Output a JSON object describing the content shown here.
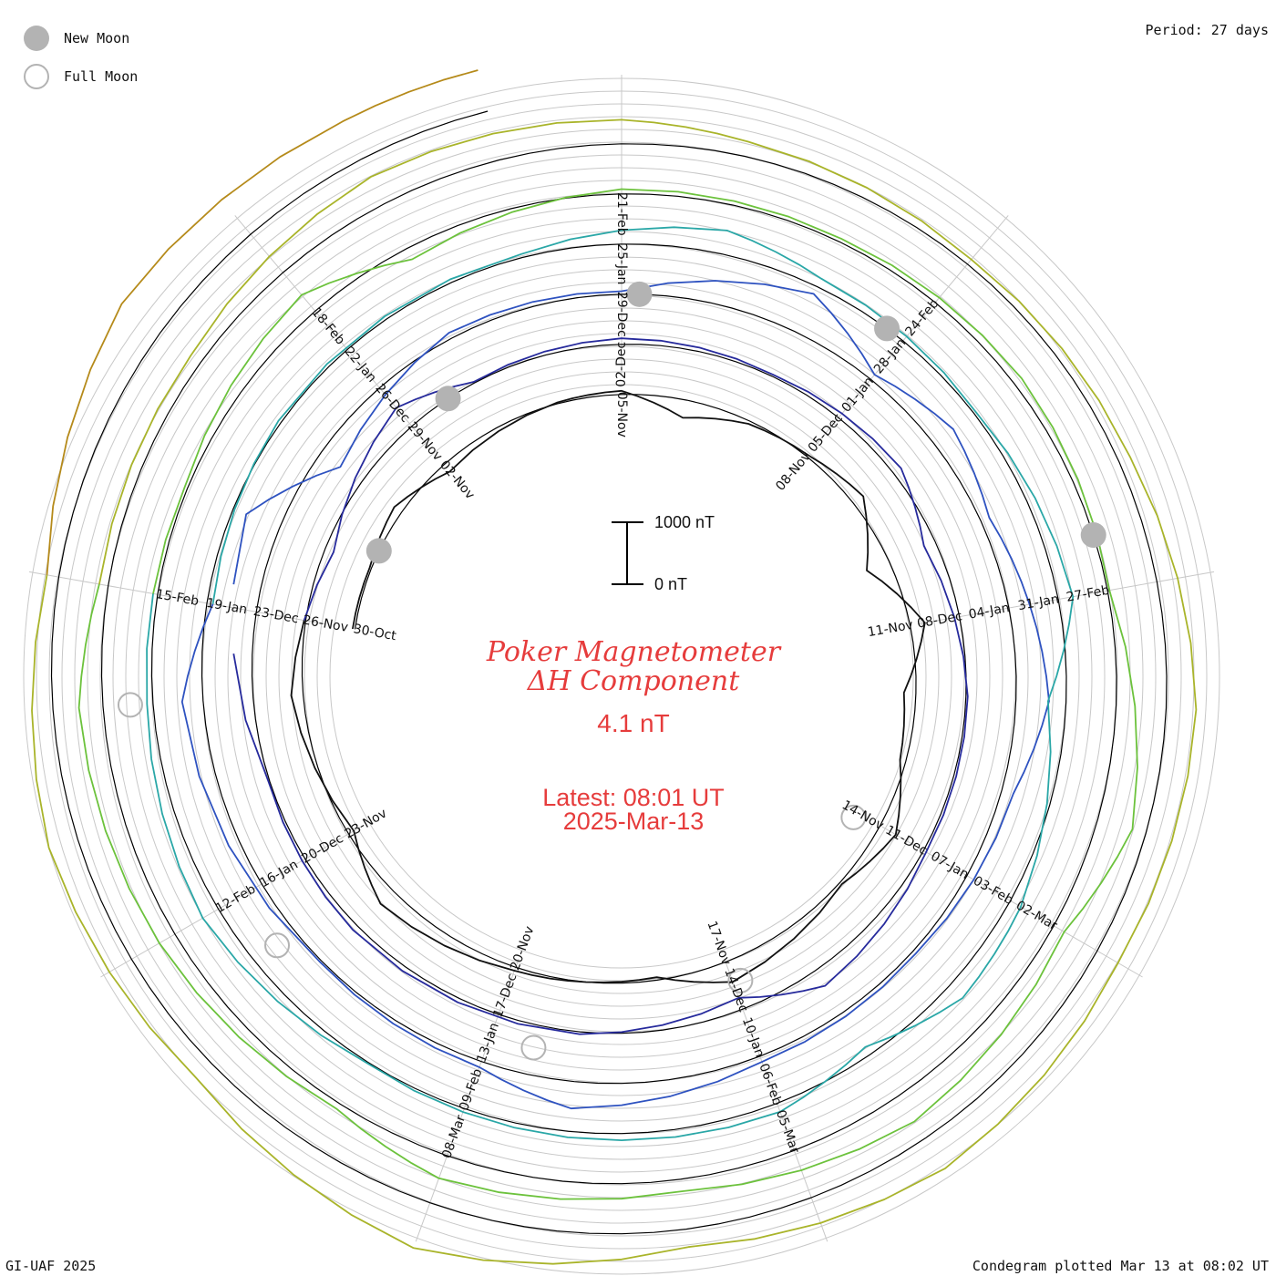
{
  "legend": {
    "new_moon_label": "New Moon",
    "full_moon_label": "Full Moon"
  },
  "period_label": "Period: 27 days",
  "footer": {
    "left": "GI-UAF 2025",
    "right": "Condegram plotted Mar 13 at 08:02 UT"
  },
  "title": {
    "line1": "Poker Magnetometer",
    "line2": "ΔH Component",
    "value": "4.1 nT",
    "latest_time": "Latest: 08:01 UT",
    "latest_date": "2025-Mar-13"
  },
  "scale_bar": {
    "top_label": "1000 nT",
    "bottom_label": "0 nT"
  },
  "colors": {
    "trace_turns": [
      "#111111",
      "#262a9c",
      "#2e52c0",
      "#2aa7a7",
      "#6cc23c",
      "#a9b42a",
      "#b58a1a",
      "#c25a1a",
      "#c21a1a"
    ],
    "moon": "#b3b3b3",
    "title": "#e63c3c",
    "grid": "#c8c8c8"
  },
  "chart_data": {
    "type": "line",
    "title": "Poker Magnetometer ΔH Component",
    "subtitle": "4.1 nT",
    "xlabel": "",
    "ylabel": "",
    "period_days": 27,
    "scale_nT": 1000,
    "date_labels": [
      "30-Oct",
      "02-Nov",
      "05-Nov",
      "08-Nov",
      "11-Nov",
      "14-Nov",
      "17-Nov",
      "20-Nov",
      "23-Nov",
      "26-Nov",
      "29-Nov",
      "02-Dec",
      "05-Dec",
      "08-Dec",
      "11-Dec",
      "14-Dec",
      "17-Dec",
      "20-Dec",
      "23-Dec",
      "26-Dec",
      "29-Dec",
      "01-Jan",
      "04-Jan",
      "07-Jan",
      "10-Jan",
      "13-Jan",
      "16-Jan",
      "19-Jan",
      "22-Jan",
      "25-Jan",
      "28-Jan",
      "31-Jan",
      "03-Feb",
      "06-Feb",
      "09-Feb",
      "12-Feb",
      "15-Feb",
      "18-Feb",
      "21-Feb",
      "24-Feb",
      "27-Feb",
      "02-Mar",
      "05-Mar",
      "08-Mar"
    ],
    "series": [
      {
        "values": [
          {
            "day": 0,
            "dH": 40
          },
          {
            "day": 1,
            "dH": 30
          },
          {
            "day": 2,
            "dH": 150
          },
          {
            "day": 3,
            "dH": -150
          },
          {
            "day": 5,
            "dH": 20
          },
          {
            "day": 6,
            "dH": 60
          },
          {
            "day": 7,
            "dH": -300
          },
          {
            "day": 8,
            "dH": -50
          },
          {
            "day": 9,
            "dH": 30
          },
          {
            "day": 10,
            "dH": 200
          },
          {
            "day": 11,
            "dH": -400
          },
          {
            "day": 12,
            "dH": 250
          },
          {
            "day": 13,
            "dH": -200
          },
          {
            "day": 14,
            "dH": -100
          },
          {
            "day": 15,
            "dH": 300
          },
          {
            "day": 16,
            "dH": 40
          },
          {
            "day": 18,
            "dH": 350
          },
          {
            "day": 19,
            "dH": -50
          },
          {
            "day": 20,
            "dH": 0
          },
          {
            "day": 21,
            "dH": 60
          },
          {
            "day": 23,
            "dH": 300
          },
          {
            "day": 24,
            "dH": -100
          },
          {
            "day": 26,
            "dH": 200
          },
          {
            "day": 28,
            "dH": -150
          },
          {
            "day": 30,
            "dH": 400
          },
          {
            "day": 31,
            "dH": 20
          },
          {
            "day": 33,
            "dH": 100
          },
          {
            "day": 35,
            "dH": 30
          },
          {
            "day": 37,
            "dH": 150
          },
          {
            "day": 38,
            "dH": -200
          },
          {
            "day": 40,
            "dH": 30
          },
          {
            "day": 42,
            "dH": 50
          },
          {
            "day": 44,
            "dH": 300
          },
          {
            "day": 45,
            "dH": -200
          },
          {
            "day": 47,
            "dH": 40
          },
          {
            "day": 50,
            "dH": 100
          },
          {
            "day": 52,
            "dH": 20
          },
          {
            "day": 55,
            "dH": 600
          },
          {
            "day": 56,
            "dH": -400
          },
          {
            "day": 58,
            "dH": 100
          },
          {
            "day": 60,
            "dH": 50
          },
          {
            "day": 62,
            "dH": 700
          },
          {
            "day": 63,
            "dH": 100
          },
          {
            "day": 64,
            "dH": 400
          },
          {
            "day": 65,
            "dH": 150
          },
          {
            "day": 66,
            "dH": 350
          },
          {
            "day": 67,
            "dH": 550
          },
          {
            "day": 68,
            "dH": 200
          },
          {
            "day": 70,
            "dH": 60
          },
          {
            "day": 72,
            "dH": 100
          },
          {
            "day": 74,
            "dH": 450
          },
          {
            "day": 75,
            "dH": 100
          },
          {
            "day": 77,
            "dH": 30
          },
          {
            "day": 80,
            "dH": 350
          },
          {
            "day": 81,
            "dH": -100
          },
          {
            "day": 83,
            "dH": 50
          },
          {
            "day": 86,
            "dH": 60
          },
          {
            "day": 88,
            "dH": 400
          },
          {
            "day": 89,
            "dH": 150
          },
          {
            "day": 91,
            "dH": 40
          },
          {
            "day": 93,
            "dH": 250
          },
          {
            "day": 94,
            "dH": -300
          },
          {
            "day": 96,
            "dH": 200
          },
          {
            "day": 97,
            "dH": 300
          },
          {
            "day": 98,
            "dH": -150
          },
          {
            "day": 99,
            "dH": 150
          },
          {
            "day": 101,
            "dH": 100
          },
          {
            "day": 103,
            "dH": 20
          },
          {
            "day": 105,
            "dH": 300
          },
          {
            "day": 107,
            "dH": 100
          },
          {
            "day": 109,
            "dH": 50
          },
          {
            "day": 111,
            "dH": 350
          },
          {
            "day": 112,
            "dH": -200
          },
          {
            "day": 114,
            "dH": 80
          },
          {
            "day": 116,
            "dH": 60
          },
          {
            "day": 118,
            "dH": 150
          },
          {
            "day": 120,
            "dH": 30
          },
          {
            "day": 122,
            "dH": 600
          },
          {
            "day": 123,
            "dH": 200
          },
          {
            "day": 125,
            "dH": 500
          },
          {
            "day": 127,
            "dH": 200
          },
          {
            "day": 129,
            "dH": 400
          },
          {
            "day": 130,
            "dH": 100
          },
          {
            "day": 132,
            "dH": 300
          },
          {
            "day": 134,
            "dH": 400
          },
          {
            "day": 135,
            "dH": 150
          },
          {
            "day": 137,
            "dH": 200
          },
          {
            "day": 139,
            "dH": 500
          },
          {
            "day": 141,
            "dH": 400
          },
          {
            "day": 142,
            "dH": 250
          },
          {
            "day": 144,
            "dH": 100
          },
          {
            "day": 146,
            "dH": 200
          },
          {
            "day": 148,
            "dH": 500
          },
          {
            "day": 150,
            "dH": 400
          },
          {
            "day": 152,
            "dH": 600
          },
          {
            "day": 154,
            "dH": 300
          },
          {
            "day": 156,
            "dH": 800
          },
          {
            "day": 158,
            "dH": 350
          },
          {
            "day": 160,
            "dH": 500
          },
          {
            "day": 162,
            "dH": 200
          },
          {
            "day": 164,
            "dH": 800
          },
          {
            "day": 166,
            "dH": 700
          },
          {
            "day": 167,
            "dH": 700
          }
        ]
      }
    ],
    "new_moon_days": [
      1.3,
      30.6,
      60.2,
      89.8,
      119.5
    ],
    "full_moon_days": [
      15.1,
      44.9,
      74.5,
      104.4,
      134.0
    ]
  }
}
